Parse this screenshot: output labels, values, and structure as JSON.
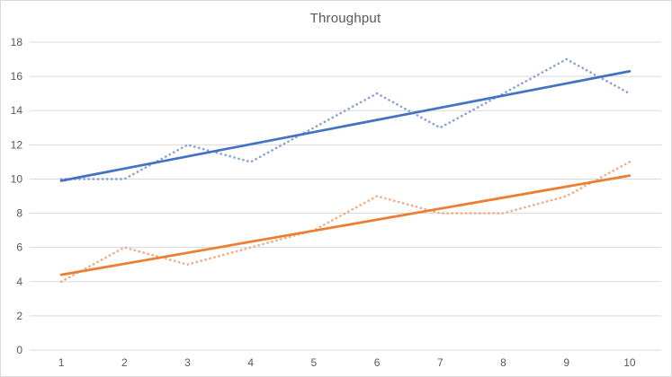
{
  "chart_data": {
    "type": "line",
    "title": "Throughput",
    "x": [
      1,
      2,
      3,
      4,
      5,
      6,
      7,
      8,
      9,
      10
    ],
    "x_ticks": [
      "1",
      "2",
      "3",
      "4",
      "5",
      "6",
      "7",
      "8",
      "9",
      "10"
    ],
    "y_ticks": [
      "0",
      "2",
      "4",
      "6",
      "8",
      "10",
      "12",
      "14",
      "16",
      "18"
    ],
    "ylim": [
      0,
      18
    ],
    "ytick_step": 2,
    "grid": true,
    "legend": "none",
    "series": [
      {
        "name": "series-1-data",
        "style": "dotted",
        "color": "#85a0d9",
        "values": [
          10,
          10,
          12,
          11,
          13,
          15,
          13,
          15,
          17,
          15
        ]
      },
      {
        "name": "series-1-trendline",
        "style": "solid",
        "color": "#4472c4",
        "trend_of": "series-1-data",
        "endpoints": [
          9.9,
          16.3
        ]
      },
      {
        "name": "series-2-data",
        "style": "dotted",
        "color": "#f2a97d",
        "values": [
          4,
          6,
          5,
          6,
          7,
          9,
          8,
          8,
          9,
          11
        ]
      },
      {
        "name": "series-2-trendline",
        "style": "solid",
        "color": "#ed7d31",
        "trend_of": "series-2-data",
        "endpoints": [
          4.4,
          10.2
        ]
      }
    ]
  },
  "colors": {
    "gridline": "#d9d9d9",
    "axis_text": "#595959",
    "title_text": "#595959",
    "background": "#ffffff",
    "border": "#d9d9d9"
  }
}
